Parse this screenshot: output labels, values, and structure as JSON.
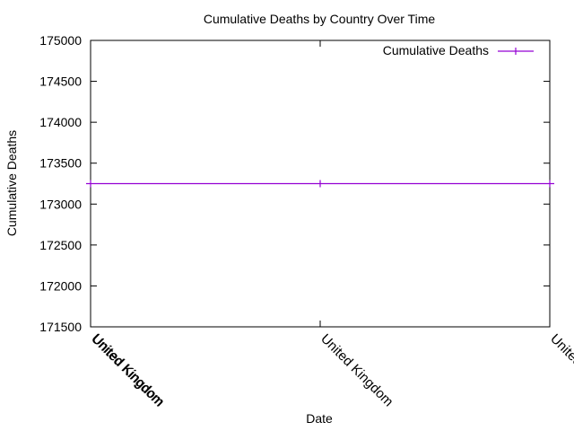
{
  "chart_data": {
    "type": "line",
    "title": "Cumulative Deaths by Country Over Time",
    "xlabel": "Date",
    "ylabel": "Cumulative Deaths",
    "ylim": [
      171500,
      175000
    ],
    "yticks": [
      171500,
      172000,
      172500,
      173000,
      173500,
      174000,
      174500,
      175000
    ],
    "xtick_labels": [
      "United Kingdom",
      "United Kingdom",
      "United Kingdom",
      "United Kingdom"
    ],
    "legend_position": "top-right",
    "grid": false,
    "series": [
      {
        "name": "Cumulative Deaths",
        "color": "#9400d3",
        "x_labels": [
          "United Kingdom",
          "United Kingdom",
          "United Kingdom"
        ],
        "values": [
          173250,
          173250,
          173250
        ]
      }
    ]
  }
}
